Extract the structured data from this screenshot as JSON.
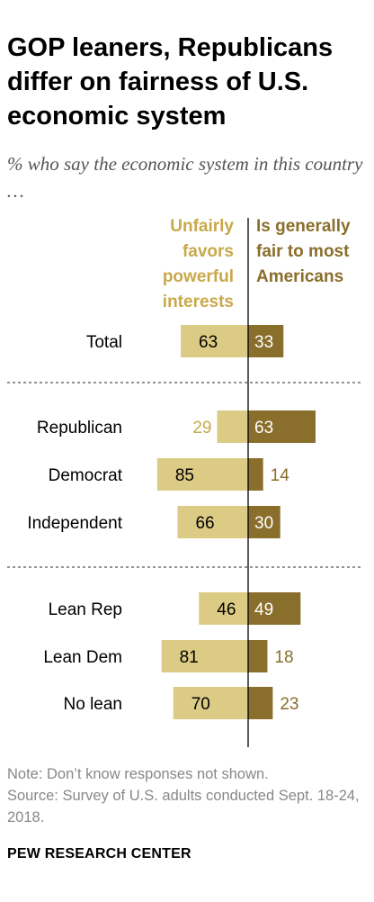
{
  "title": "GOP leaners, Republicans differ on fairness of U.S. economic system",
  "subtitle": "% who say the economic system in this country …",
  "note": "Note: Don’t know responses not shown.",
  "source": "Source: Survey of U.S. adults conducted Sept. 18-24, 2018.",
  "brand": "PEW RESEARCH CENTER",
  "colors": {
    "unfair_bar": "#dccb84",
    "fair_bar": "#8a6e2b",
    "unfair_label_outside": "#c8a94a",
    "fair_label_outside": "#8a6e2b",
    "divider": "#555555"
  },
  "chart_data": {
    "type": "bar",
    "orientation": "diverging-horizontal",
    "categories": [
      "Total",
      "Republican",
      "Democrat",
      "Independent",
      "Lean Rep",
      "Lean Dem",
      "No lean"
    ],
    "groups": [
      [
        "Total"
      ],
      [
        "Republican",
        "Democrat",
        "Independent"
      ],
      [
        "Lean Rep",
        "Lean Dem",
        "No lean"
      ]
    ],
    "series": [
      {
        "name": "Unfairly favors powerful interests",
        "values": [
          63,
          29,
          85,
          66,
          46,
          81,
          70
        ]
      },
      {
        "name": "Is generally fair to most Americans",
        "values": [
          33,
          63,
          14,
          30,
          49,
          18,
          23
        ]
      }
    ],
    "unit": "%"
  }
}
